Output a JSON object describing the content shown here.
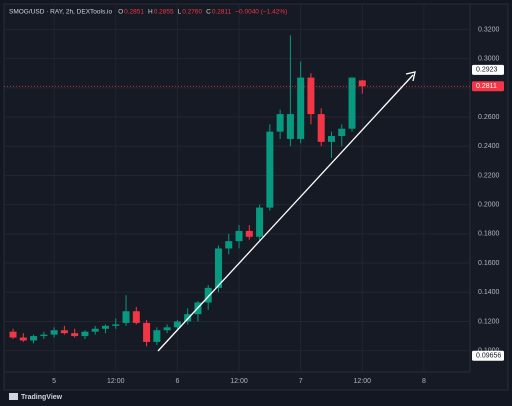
{
  "chart_data": {
    "type": "candlestick",
    "symbol": "SMOG/USD · RAY, 2h, DEXTools.io",
    "ohlc_legend": [
      {
        "key": "O",
        "value": "0.2851"
      },
      {
        "key": "H",
        "value": "0.2855"
      },
      {
        "key": "L",
        "value": "0.2760"
      },
      {
        "key": "C",
        "value": "0.2811"
      }
    ],
    "change": "−0.0040 (−1.42%)",
    "footer": "TradingView",
    "x": [
      -8,
      -6,
      -4,
      -2,
      0,
      2,
      4,
      6,
      8,
      10,
      12,
      14,
      16,
      18,
      20,
      22,
      24,
      26,
      28,
      30,
      32,
      34,
      36,
      38,
      40,
      42,
      44,
      46,
      48,
      50,
      52,
      54,
      56,
      58,
      60
    ],
    "open": [
      0.113,
      0.109,
      0.107,
      0.11,
      0.111,
      0.114,
      0.112,
      0.11,
      0.113,
      0.115,
      0.117,
      0.119,
      0.127,
      0.119,
      0.106,
      0.114,
      0.116,
      0.12,
      0.125,
      0.133,
      0.143,
      0.17,
      0.175,
      0.182,
      0.178,
      0.198,
      0.25,
      0.245,
      0.245,
      0.287,
      0.262,
      0.243,
      0.247,
      0.252,
      0.2851
    ],
    "high": [
      0.115,
      0.112,
      0.111,
      0.113,
      0.116,
      0.117,
      0.115,
      0.114,
      0.117,
      0.118,
      0.122,
      0.138,
      0.13,
      0.121,
      0.116,
      0.118,
      0.121,
      0.129,
      0.134,
      0.145,
      0.172,
      0.18,
      0.186,
      0.186,
      0.2,
      0.255,
      0.265,
      0.316,
      0.298,
      0.29,
      0.266,
      0.25,
      0.255,
      0.287,
      0.2855
    ],
    "low": [
      0.108,
      0.106,
      0.105,
      0.108,
      0.109,
      0.111,
      0.109,
      0.108,
      0.111,
      0.112,
      0.115,
      0.117,
      0.118,
      0.103,
      0.104,
      0.112,
      0.114,
      0.118,
      0.12,
      0.128,
      0.14,
      0.166,
      0.17,
      0.176,
      0.175,
      0.196,
      0.245,
      0.24,
      0.242,
      0.255,
      0.24,
      0.232,
      0.24,
      0.25,
      0.276
    ],
    "close": [
      0.109,
      0.107,
      0.11,
      0.111,
      0.114,
      0.112,
      0.11,
      0.113,
      0.115,
      0.117,
      0.118,
      0.127,
      0.119,
      0.106,
      0.114,
      0.116,
      0.12,
      0.125,
      0.133,
      0.143,
      0.17,
      0.175,
      0.182,
      0.178,
      0.198,
      0.25,
      0.262,
      0.262,
      0.287,
      0.262,
      0.243,
      0.247,
      0.252,
      0.287,
      0.2811
    ],
    "up_color": "#089981",
    "down_color": "#f23645",
    "xlim": [
      -9.76,
      80.97
    ],
    "xticks": [
      {
        "value": 0,
        "label": "5"
      },
      {
        "value": 12,
        "label": "12:00"
      },
      {
        "value": 24,
        "label": "6"
      },
      {
        "value": 36,
        "label": "12:00"
      },
      {
        "value": 48,
        "label": "7"
      },
      {
        "value": 60,
        "label": "12:00"
      },
      {
        "value": 72,
        "label": "8"
      }
    ],
    "ylim": [
      0.0854,
      0.3374
    ],
    "yticks": [
      {
        "value": 0.1,
        "label": "0.1000"
      },
      {
        "value": 0.12,
        "label": "0.1200"
      },
      {
        "value": 0.14,
        "label": "0.1400"
      },
      {
        "value": 0.16,
        "label": "0.1600"
      },
      {
        "value": 0.18,
        "label": "0.1800"
      },
      {
        "value": 0.2,
        "label": "0.2000"
      },
      {
        "value": 0.22,
        "label": "0.2200"
      },
      {
        "value": 0.24,
        "label": "0.2400"
      },
      {
        "value": 0.26,
        "label": "0.2600"
      },
      {
        "value": 0.28,
        "label": "0.2800"
      },
      {
        "value": 0.3,
        "label": "0.3000"
      },
      {
        "value": 0.32,
        "label": "0.3200"
      }
    ],
    "price_markers": [
      {
        "value": 0.2923,
        "color": "#ffffff"
      },
      {
        "value": 0.2811,
        "color": "#f23645"
      },
      {
        "value": 0.09656,
        "color": "#ffffff"
      }
    ],
    "grid": true
  }
}
